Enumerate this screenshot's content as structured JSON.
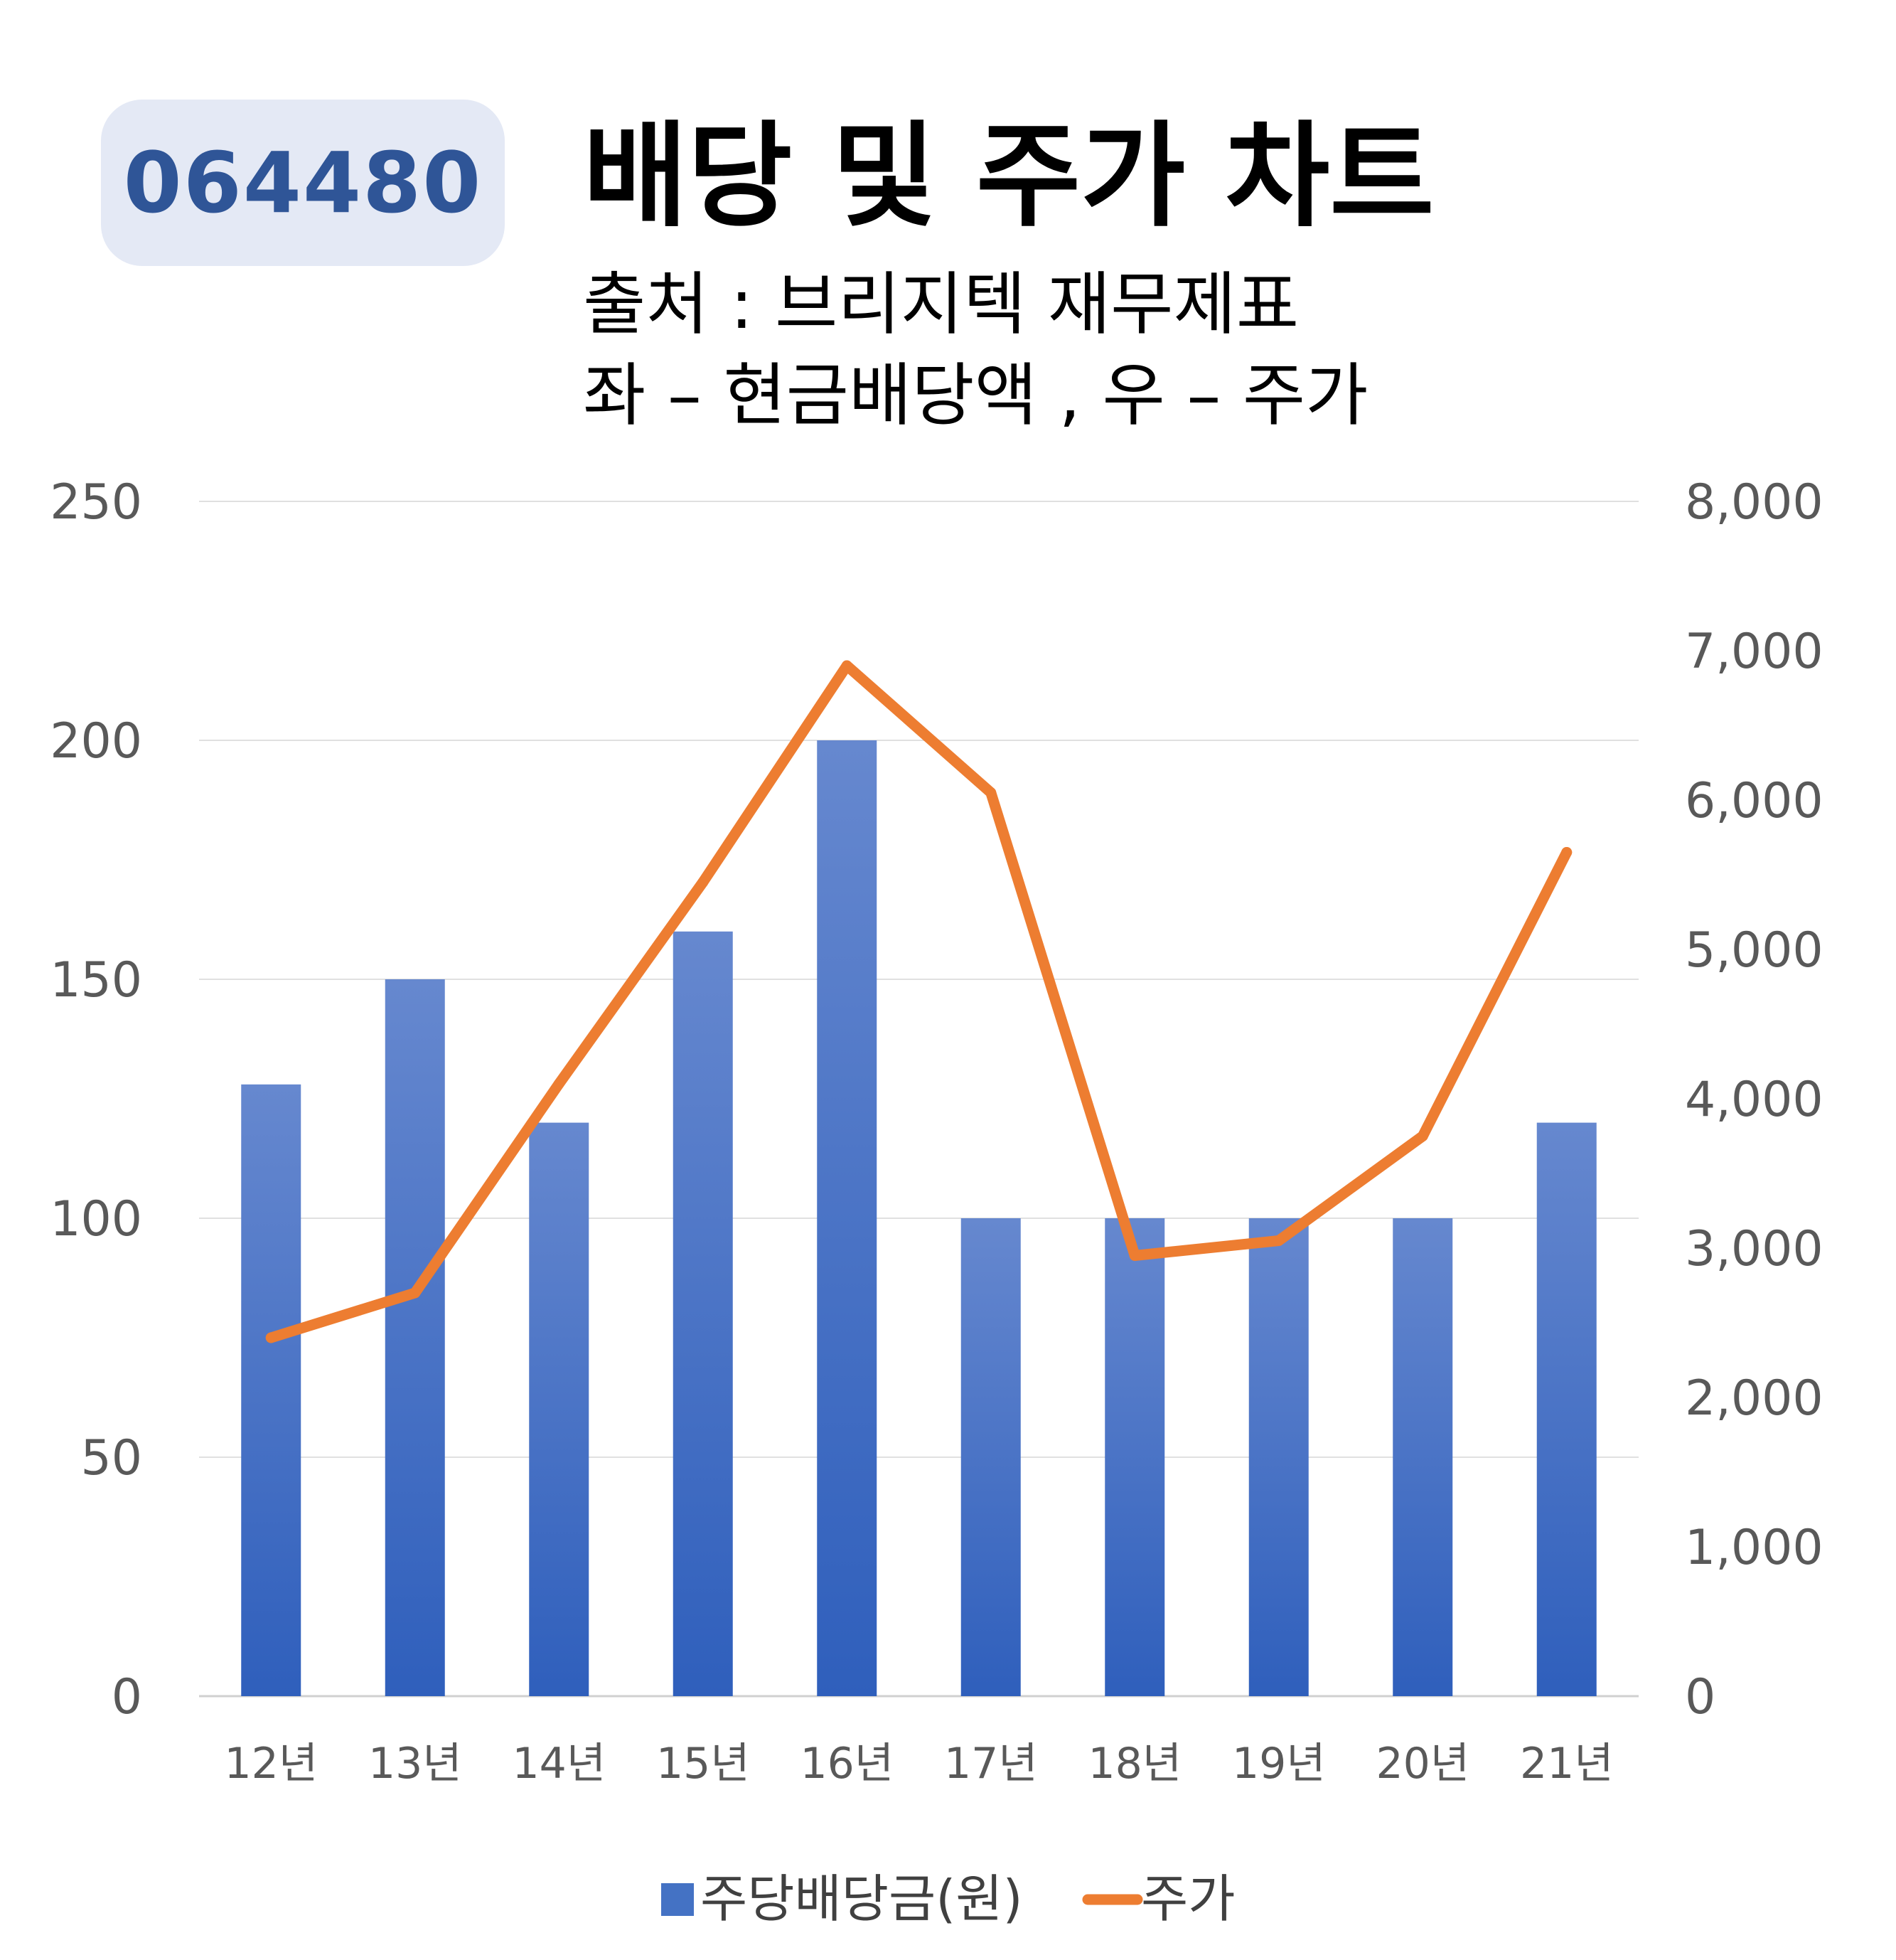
{
  "header": {
    "code": "064480",
    "title": "배당 및 주가 차트",
    "subtitle1": "출처 : 브리지텍 재무제표",
    "subtitle2": "좌 – 현금배당액 , 우 – 주가"
  },
  "chart_data": {
    "type": "bar",
    "categories": [
      "12년",
      "13년",
      "14년",
      "15년",
      "16년",
      "17년",
      "18년",
      "19년",
      "20년",
      "21년"
    ],
    "series": [
      {
        "name": "주당배당금(원)",
        "type": "bar",
        "axis": "left",
        "color": "#4472c4",
        "values": [
          128,
          150,
          120,
          160,
          200,
          100,
          100,
          100,
          100,
          120
        ]
      },
      {
        "name": "주가",
        "type": "line",
        "axis": "right",
        "color": "#ed7d31",
        "values": [
          2400,
          2700,
          4100,
          5450,
          6900,
          6050,
          2950,
          3050,
          3750,
          5650
        ]
      }
    ],
    "y_left": {
      "range": [
        0,
        250
      ],
      "ticks": [
        "0",
        "50",
        "100",
        "150",
        "200",
        "250"
      ],
      "tick_values": [
        0,
        50,
        100,
        150,
        200,
        250
      ]
    },
    "y_right": {
      "range": [
        0,
        8000
      ],
      "ticks": [
        "0",
        "1,000",
        "2,000",
        "3,000",
        "4,000",
        "5,000",
        "6,000",
        "7,000",
        "8,000"
      ],
      "tick_values": [
        0,
        1000,
        2000,
        3000,
        4000,
        5000,
        6000,
        7000,
        8000
      ]
    },
    "grid": true,
    "legend_position": "bottom"
  }
}
